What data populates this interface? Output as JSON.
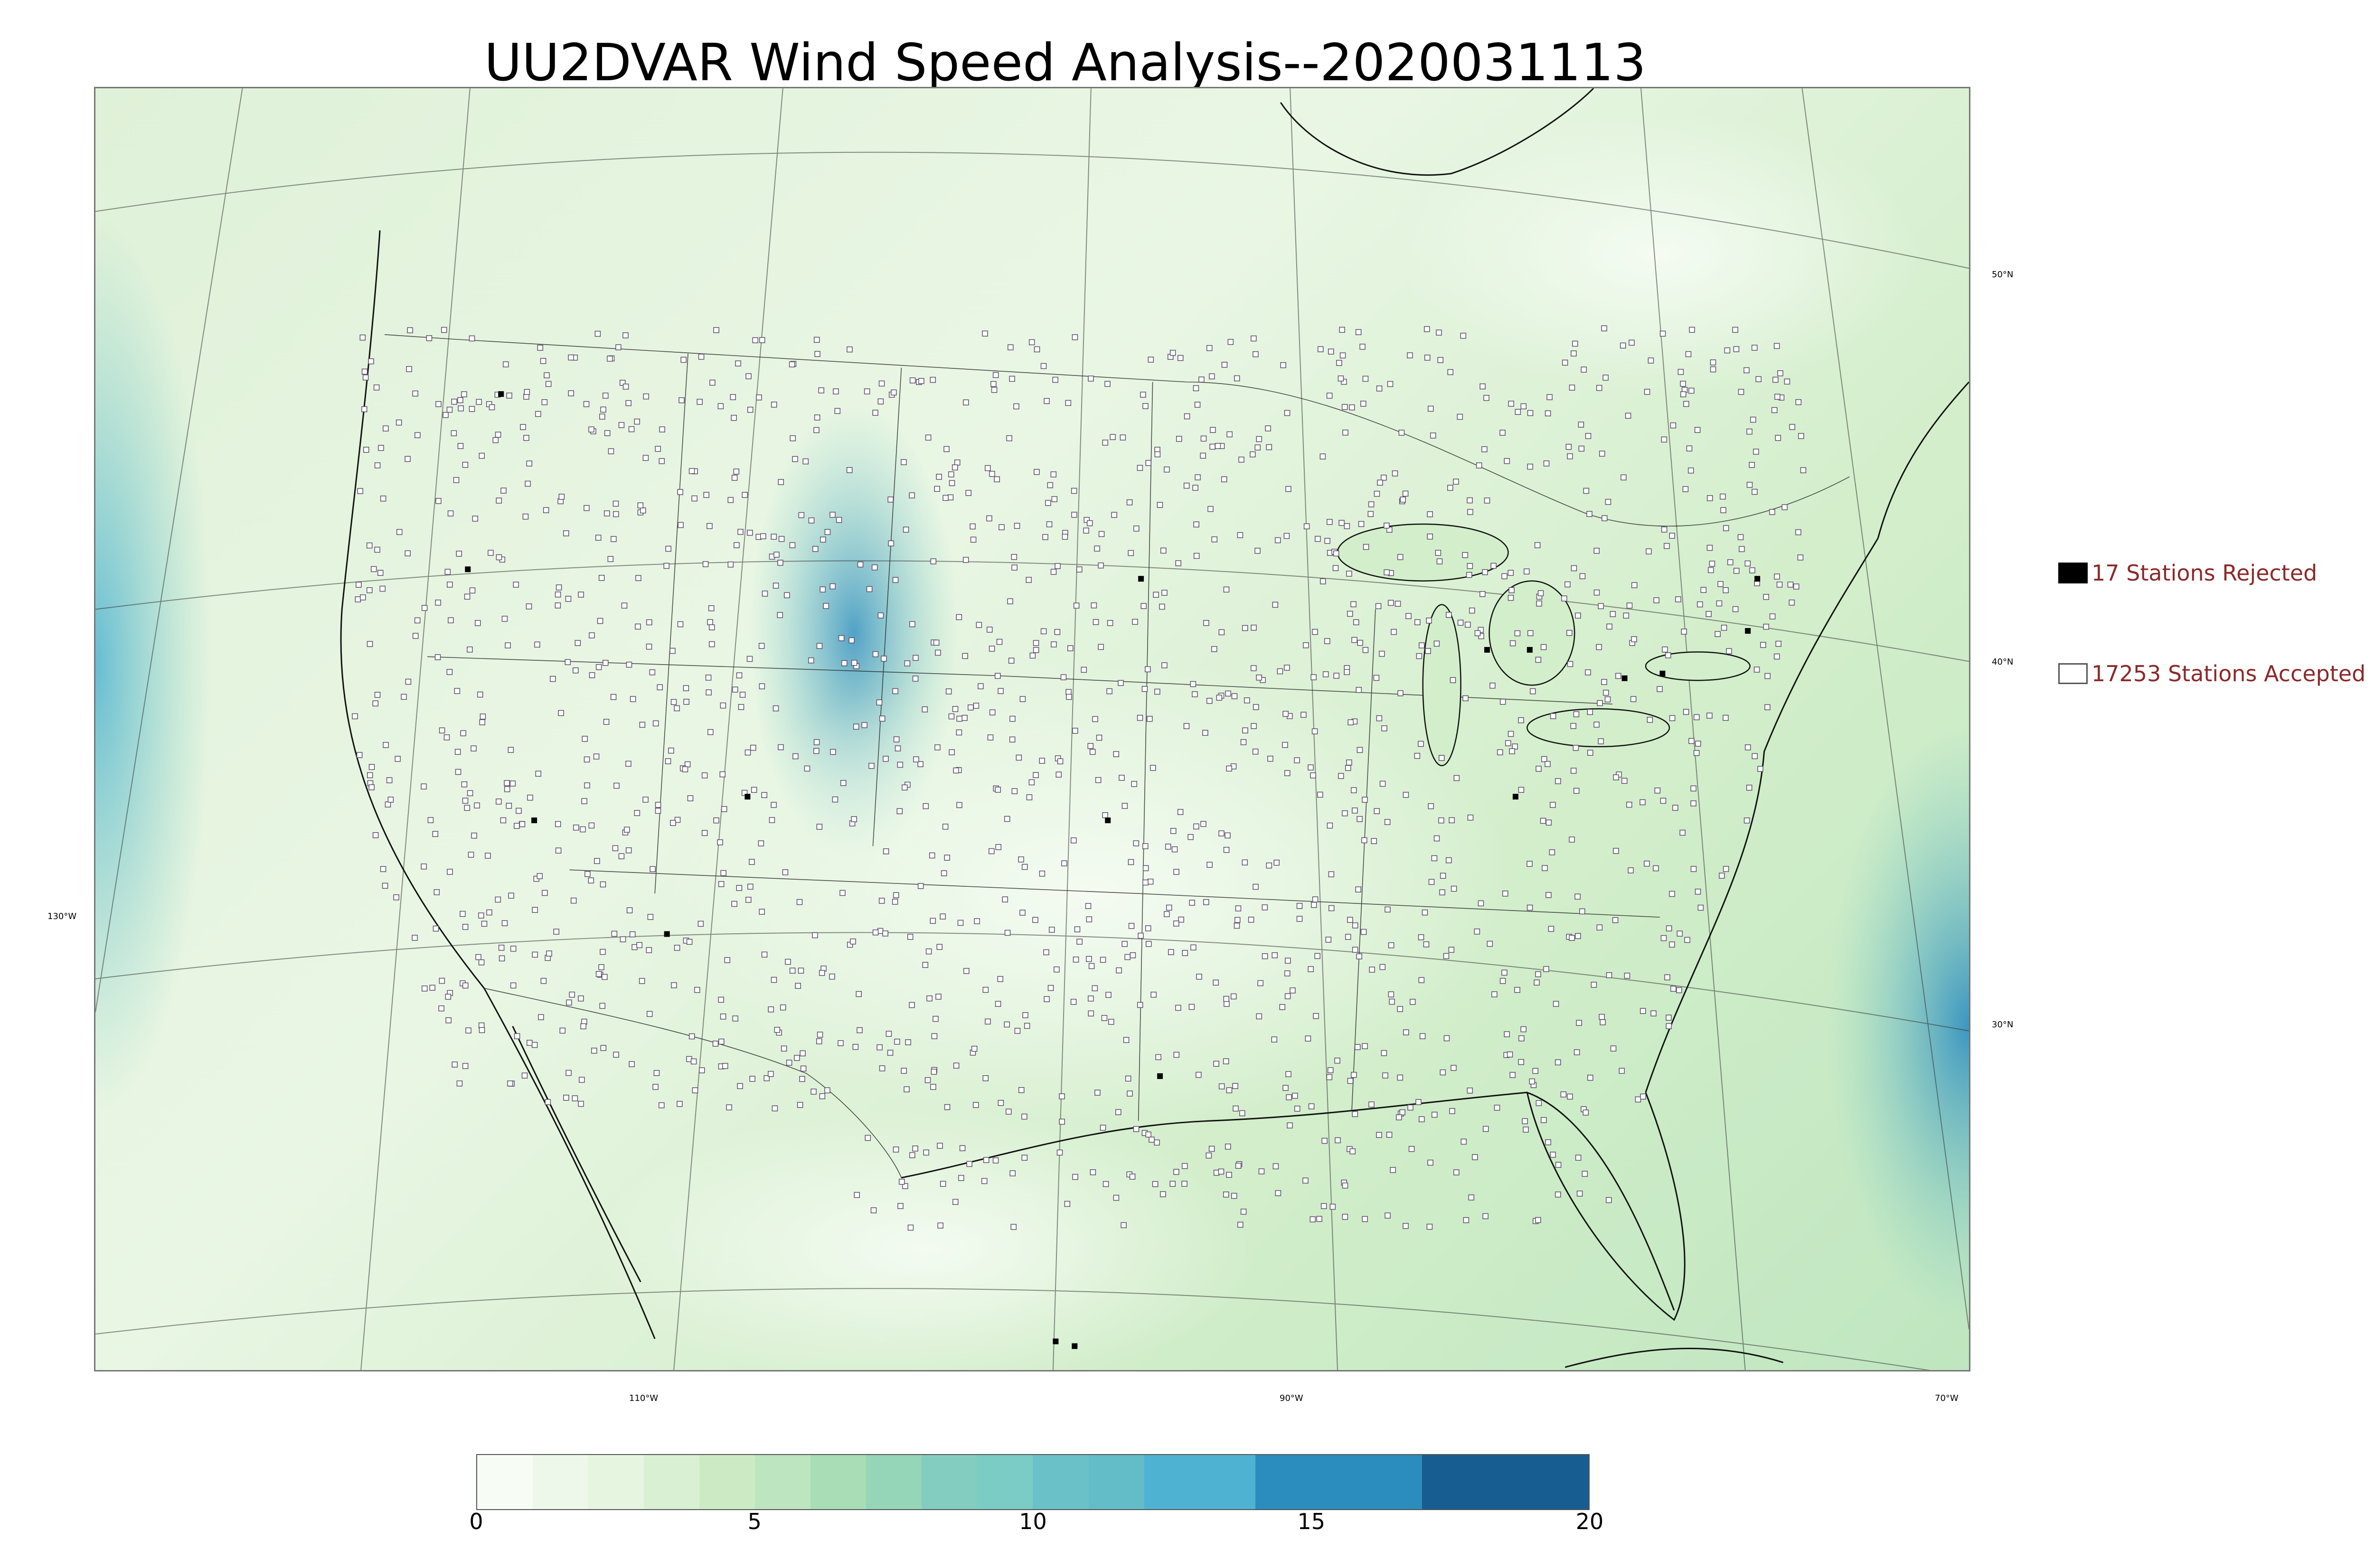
{
  "title": "UU2DVAR Wind Speed Analysis--2020031113",
  "map": {
    "lat_labels": [
      "50°N",
      "40°N",
      "30°N"
    ],
    "lon_labels": [
      "130°W",
      "110°W",
      "90°W",
      "70°W"
    ],
    "background_colors": [
      "#f4fbf1",
      "#d9efd3",
      "#b6e2bd",
      "#7ccdc3",
      "#4fb3d3",
      "#2c8cc0"
    ]
  },
  "legend": {
    "rejected_label": "17 Stations Rejected",
    "accepted_label": "17253 Stations Accepted",
    "rejected_color": "#000000",
    "accepted_color": "#ffffff",
    "label_color": "#8b2a2a"
  },
  "colorbar": {
    "ticks": [
      "0",
      "5",
      "10",
      "15",
      "20"
    ],
    "range": [
      0,
      20
    ],
    "segments": [
      {
        "from": 0,
        "to": 1,
        "color": "#f7fcf5"
      },
      {
        "from": 1,
        "to": 2,
        "color": "#eef8ea"
      },
      {
        "from": 2,
        "to": 3,
        "color": "#e5f5e0"
      },
      {
        "from": 3,
        "to": 4,
        "color": "#d9f0d3"
      },
      {
        "from": 4,
        "to": 5,
        "color": "#ccebc5"
      },
      {
        "from": 5,
        "to": 6,
        "color": "#bde5bf"
      },
      {
        "from": 6,
        "to": 7,
        "color": "#a8ddb5"
      },
      {
        "from": 7,
        "to": 8,
        "color": "#95d5b8"
      },
      {
        "from": 8,
        "to": 9,
        "color": "#83cdc0"
      },
      {
        "from": 9,
        "to": 10,
        "color": "#7bccc4"
      },
      {
        "from": 10,
        "to": 11,
        "color": "#6ac2c8"
      },
      {
        "from": 11,
        "to": 12,
        "color": "#62bdc9"
      },
      {
        "from": 12,
        "to": 14,
        "color": "#4eb3d3"
      },
      {
        "from": 14,
        "to": 17,
        "color": "#2b8cbe"
      },
      {
        "from": 17,
        "to": 20,
        "color": "#175d91"
      }
    ]
  }
}
